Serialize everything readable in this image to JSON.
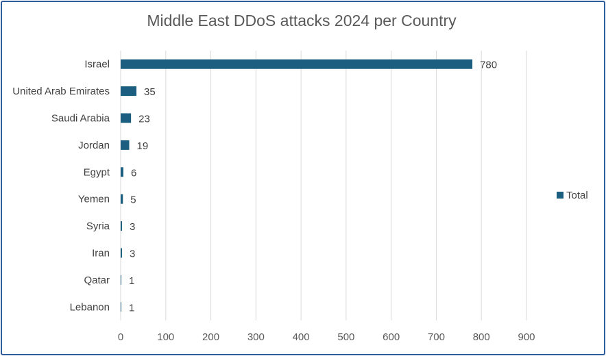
{
  "chart_data": {
    "type": "bar",
    "orientation": "horizontal",
    "title": "Middle East DDoS attacks 2024 per Country",
    "categories": [
      "Israel",
      "United Arab Emirates",
      "Saudi Arabia",
      "Jordan",
      "Egypt",
      "Yemen",
      "Syria",
      "Iran",
      "Qatar",
      "Lebanon"
    ],
    "series": [
      {
        "name": "Total",
        "values": [
          780,
          35,
          23,
          19,
          6,
          5,
          3,
          3,
          1,
          1
        ],
        "color": "#1b5e80"
      }
    ],
    "xlim": [
      0,
      900
    ],
    "xticks": [
      0,
      100,
      200,
      300,
      400,
      500,
      600,
      700,
      800,
      900
    ],
    "grid": true,
    "legend": "right",
    "data_labels": true
  }
}
